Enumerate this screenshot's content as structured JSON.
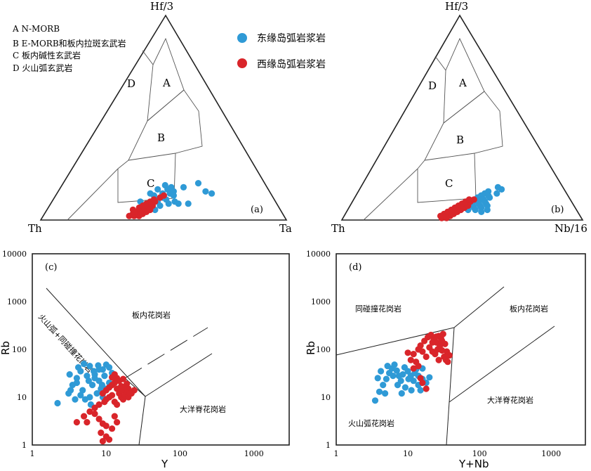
{
  "colors": {
    "east": "#2f9ad6",
    "west": "#d9252a",
    "line": "#222222",
    "field": "#555555"
  },
  "legend": {
    "codes": [
      "A N-MORB",
      "B E-MORB和板内拉斑玄武岩",
      "C 板内碱性玄武岩",
      "D 火山弧玄武岩"
    ],
    "east": "东缘岛弧岩浆岩",
    "west": "西缘岛弧岩浆岩"
  },
  "chart_data": [
    {
      "type": "scatter",
      "subtype": "ternary",
      "panel": "(a)",
      "apices": {
        "top": "Hf/3",
        "left": "Th",
        "right": "Ta"
      },
      "fields": [
        "A",
        "B",
        "C",
        "D"
      ],
      "series": [
        {
          "name": "东缘岛弧岩浆岩",
          "points": [
            [
              0.42,
              0.17
            ],
            [
              0.44,
              0.15
            ],
            [
              0.43,
              0.13
            ],
            [
              0.4,
              0.12
            ],
            [
              0.46,
              0.13
            ],
            [
              0.45,
              0.16
            ],
            [
              0.47,
              0.14
            ],
            [
              0.4,
              0.15
            ],
            [
              0.44,
              0.11
            ],
            [
              0.43,
              0.09
            ],
            [
              0.46,
              0.1
            ],
            [
              0.48,
              0.12
            ],
            [
              0.42,
              0.1
            ],
            [
              0.38,
              0.13
            ],
            [
              0.5,
              0.16
            ],
            [
              0.55,
              0.18
            ],
            [
              0.36,
              0.09
            ],
            [
              0.41,
              0.07
            ],
            [
              0.45,
              0.07
            ],
            [
              0.48,
              0.08
            ],
            [
              0.5,
              0.09
            ],
            [
              0.52,
              0.08
            ],
            [
              0.38,
              0.05
            ],
            [
              0.44,
              0.05
            ],
            [
              0.56,
              0.08
            ],
            [
              0.6,
              0.14
            ],
            [
              0.63,
              0.13
            ]
          ]
        },
        {
          "name": "西缘岛弧岩浆岩",
          "points": [
            [
              0.35,
              0.02
            ],
            [
              0.37,
              0.02
            ],
            [
              0.39,
              0.02
            ],
            [
              0.36,
              0.03
            ],
            [
              0.38,
              0.03
            ],
            [
              0.4,
              0.03
            ],
            [
              0.37,
              0.04
            ],
            [
              0.39,
              0.04
            ],
            [
              0.41,
              0.04
            ],
            [
              0.35,
              0.05
            ],
            [
              0.38,
              0.05
            ],
            [
              0.4,
              0.05
            ],
            [
              0.37,
              0.06
            ],
            [
              0.39,
              0.06
            ],
            [
              0.41,
              0.06
            ],
            [
              0.38,
              0.07
            ],
            [
              0.4,
              0.07
            ],
            [
              0.42,
              0.07
            ],
            [
              0.39,
              0.08
            ],
            [
              0.41,
              0.08
            ],
            [
              0.4,
              0.09
            ],
            [
              0.42,
              0.09
            ],
            [
              0.41,
              0.1
            ],
            [
              0.43,
              0.11
            ],
            [
              0.44,
              0.12
            ],
            [
              0.36,
              0.04
            ],
            [
              0.42,
              0.05
            ]
          ]
        }
      ]
    },
    {
      "type": "scatter",
      "subtype": "ternary",
      "panel": "(b)",
      "apices": {
        "top": "Hf/3",
        "left": "Th",
        "right": "Nb/16"
      },
      "fields": [
        "A",
        "B",
        "C",
        "D"
      ],
      "series": [
        {
          "name": "东缘岛弧岩浆岩",
          "points": [
            [
              0.52,
              0.12
            ],
            [
              0.53,
              0.13
            ],
            [
              0.54,
              0.14
            ],
            [
              0.51,
              0.11
            ],
            [
              0.53,
              0.1
            ],
            [
              0.55,
              0.12
            ],
            [
              0.52,
              0.09
            ],
            [
              0.54,
              0.1
            ],
            [
              0.56,
              0.11
            ],
            [
              0.5,
              0.09
            ],
            [
              0.53,
              0.08
            ],
            [
              0.55,
              0.09
            ],
            [
              0.51,
              0.07
            ],
            [
              0.54,
              0.07
            ],
            [
              0.56,
              0.08
            ],
            [
              0.52,
              0.06
            ],
            [
              0.55,
              0.06
            ],
            [
              0.57,
              0.07
            ],
            [
              0.5,
              0.05
            ],
            [
              0.53,
              0.05
            ],
            [
              0.58,
              0.05
            ],
            [
              0.56,
              0.04
            ],
            [
              0.59,
              0.15
            ],
            [
              0.58,
              0.13
            ],
            [
              0.57,
              0.16
            ]
          ]
        },
        {
          "name": "西缘岛弧岩浆岩",
          "points": [
            [
              0.4,
              0.02
            ],
            [
              0.42,
              0.02
            ],
            [
              0.44,
              0.02
            ],
            [
              0.41,
              0.03
            ],
            [
              0.43,
              0.03
            ],
            [
              0.45,
              0.03
            ],
            [
              0.42,
              0.04
            ],
            [
              0.44,
              0.04
            ],
            [
              0.46,
              0.04
            ],
            [
              0.43,
              0.05
            ],
            [
              0.45,
              0.05
            ],
            [
              0.47,
              0.05
            ],
            [
              0.44,
              0.06
            ],
            [
              0.46,
              0.06
            ],
            [
              0.48,
              0.06
            ],
            [
              0.45,
              0.07
            ],
            [
              0.47,
              0.07
            ],
            [
              0.49,
              0.07
            ],
            [
              0.46,
              0.08
            ],
            [
              0.48,
              0.08
            ],
            [
              0.47,
              0.09
            ],
            [
              0.49,
              0.09
            ],
            [
              0.48,
              0.1
            ],
            [
              0.5,
              0.1
            ],
            [
              0.41,
              0.01
            ],
            [
              0.43,
              0.01
            ]
          ]
        }
      ]
    },
    {
      "type": "scatter",
      "panel": "(c)",
      "xlabel": "Y",
      "ylabel": "Rb",
      "xscale": "log",
      "yscale": "log",
      "xlim": [
        1,
        3000
      ],
      "ylim": [
        1,
        10000
      ],
      "xticks": [
        "1",
        "10",
        "100",
        "1000"
      ],
      "yticks": [
        "1",
        "10",
        "100",
        "1000",
        "10000"
      ],
      "field_labels": [
        "板内花岗岩",
        "火山弧+同碰撞花岗岩",
        "大洋脊花岗岩"
      ],
      "series": [
        {
          "name": "东缘岛弧岩浆岩",
          "points": [
            [
              2.2,
              7.5
            ],
            [
              3.1,
              12
            ],
            [
              3.5,
              18
            ],
            [
              4,
              25
            ],
            [
              4.5,
              35
            ],
            [
              5,
              50
            ],
            [
              6,
              45
            ],
            [
              7,
              30
            ],
            [
              8,
              22
            ],
            [
              9,
              38
            ],
            [
              10,
              48
            ],
            [
              3.2,
              30
            ],
            [
              4.2,
              42
            ],
            [
              5.5,
              28
            ],
            [
              6.5,
              18
            ],
            [
              7.5,
              12
            ],
            [
              8.5,
              15
            ],
            [
              9.5,
              28
            ],
            [
              11,
              20
            ],
            [
              12,
              32
            ],
            [
              3.8,
              9
            ],
            [
              4.8,
              14
            ],
            [
              5.8,
              22
            ],
            [
              6.8,
              35
            ],
            [
              7.8,
              46
            ],
            [
              8.8,
              18
            ],
            [
              5.2,
              9
            ],
            [
              6.2,
              7
            ],
            [
              9,
              10
            ],
            [
              4,
              20
            ],
            [
              3.3,
              14
            ],
            [
              4.5,
              11
            ],
            [
              7,
              25
            ],
            [
              8,
              38
            ],
            [
              10,
              15
            ],
            [
              6,
              10
            ],
            [
              11,
              42
            ]
          ]
        },
        {
          "name": "西缘岛弧岩浆岩",
          "points": [
            [
              9,
              12
            ],
            [
              10,
              14
            ],
            [
              11,
              16
            ],
            [
              12,
              18
            ],
            [
              13,
              20
            ],
            [
              14,
              15
            ],
            [
              15,
              22
            ],
            [
              16,
              17
            ],
            [
              17,
              24
            ],
            [
              18,
              13
            ],
            [
              19,
              19
            ],
            [
              20,
              15
            ],
            [
              22,
              12
            ],
            [
              24,
              14
            ],
            [
              10,
              9
            ],
            [
              11,
              10
            ],
            [
              12,
              11
            ],
            [
              13,
              8
            ],
            [
              14,
              7
            ],
            [
              15,
              12
            ],
            [
              16,
              10
            ],
            [
              17,
              9
            ],
            [
              18,
              11
            ],
            [
              19,
              13
            ],
            [
              20,
              10
            ],
            [
              21,
              12
            ],
            [
              9.5,
              8
            ],
            [
              8,
              7
            ],
            [
              7,
              6
            ],
            [
              6,
              5
            ],
            [
              5,
              4
            ],
            [
              4,
              3
            ],
            [
              5.5,
              3
            ],
            [
              7,
              4.5
            ],
            [
              8,
              3.5
            ],
            [
              9,
              2.8
            ],
            [
              10,
              2.5
            ],
            [
              12,
              2.2
            ],
            [
              8.5,
              1.8
            ],
            [
              10,
              1.5
            ],
            [
              11,
              1.3
            ],
            [
              13,
              4
            ],
            [
              14,
              3
            ],
            [
              9,
              1.2
            ],
            [
              16,
              14
            ],
            [
              14,
              25
            ],
            [
              13,
              30
            ],
            [
              12,
              26
            ],
            [
              18,
              16
            ]
          ]
        }
      ]
    },
    {
      "type": "scatter",
      "panel": "(d)",
      "xlabel": "Y+Nb",
      "ylabel": "Rb",
      "xscale": "log",
      "yscale": "log",
      "xlim": [
        1,
        3000
      ],
      "ylim": [
        1,
        10000
      ],
      "xticks": [
        "1",
        "10",
        "100",
        "1000"
      ],
      "yticks": [
        "1",
        "10",
        "100",
        "1000",
        "10000"
      ],
      "field_labels": [
        "同碰撞花岗岩",
        "板内花岗岩",
        "大洋脊花岗岩",
        "火山弧花岗岩"
      ],
      "series": [
        {
          "name": "东缘岛弧岩浆岩",
          "points": [
            [
              3.5,
              8.5
            ],
            [
              4,
              13
            ],
            [
              4.5,
              18
            ],
            [
              5,
              24
            ],
            [
              5.5,
              32
            ],
            [
              6,
              40
            ],
            [
              6.5,
              48
            ],
            [
              7,
              36
            ],
            [
              7.5,
              28
            ],
            [
              8,
              22
            ],
            [
              8.5,
              30
            ],
            [
              9,
              42
            ],
            [
              10,
              35
            ],
            [
              11,
              28
            ],
            [
              12,
              22
            ],
            [
              13,
              38
            ],
            [
              14,
              18
            ],
            [
              15,
              14
            ],
            [
              16,
              24
            ],
            [
              4.2,
              35
            ],
            [
              5.2,
              45
            ],
            [
              6.2,
              28
            ],
            [
              7.2,
              18
            ],
            [
              8.2,
              12
            ],
            [
              9.2,
              16
            ],
            [
              10.2,
              24
            ],
            [
              11.2,
              14
            ],
            [
              3.8,
              25
            ],
            [
              4.8,
              12
            ],
            [
              12.5,
              32
            ],
            [
              14,
              28
            ],
            [
              16,
              40
            ],
            [
              18,
              20
            ],
            [
              20,
              26
            ]
          ]
        },
        {
          "name": "西缘岛弧岩浆岩",
          "points": [
            [
              15,
              120
            ],
            [
              17,
              150
            ],
            [
              19,
              180
            ],
            [
              21,
              200
            ],
            [
              23,
              160
            ],
            [
              25,
              140
            ],
            [
              27,
              190
            ],
            [
              29,
              170
            ],
            [
              31,
              210
            ],
            [
              33,
              130
            ],
            [
              20,
              110
            ],
            [
              22,
              90
            ],
            [
              24,
              80
            ],
            [
              26,
              100
            ],
            [
              28,
              120
            ],
            [
              30,
              95
            ],
            [
              32,
              70
            ],
            [
              34,
              60
            ],
            [
              36,
              55
            ],
            [
              38,
              75
            ],
            [
              18,
              70
            ],
            [
              16,
              90
            ],
            [
              14,
              100
            ],
            [
              12,
              80
            ],
            [
              10,
              85
            ],
            [
              11,
              60
            ],
            [
              13,
              55
            ],
            [
              14,
              45
            ],
            [
              12,
              40
            ],
            [
              16,
              20
            ],
            [
              18,
              15
            ],
            [
              15,
              25
            ],
            [
              25,
              185
            ],
            [
              30,
              150
            ],
            [
              35,
              90
            ],
            [
              27,
              60
            ],
            [
              22,
              140
            ]
          ]
        }
      ]
    }
  ]
}
